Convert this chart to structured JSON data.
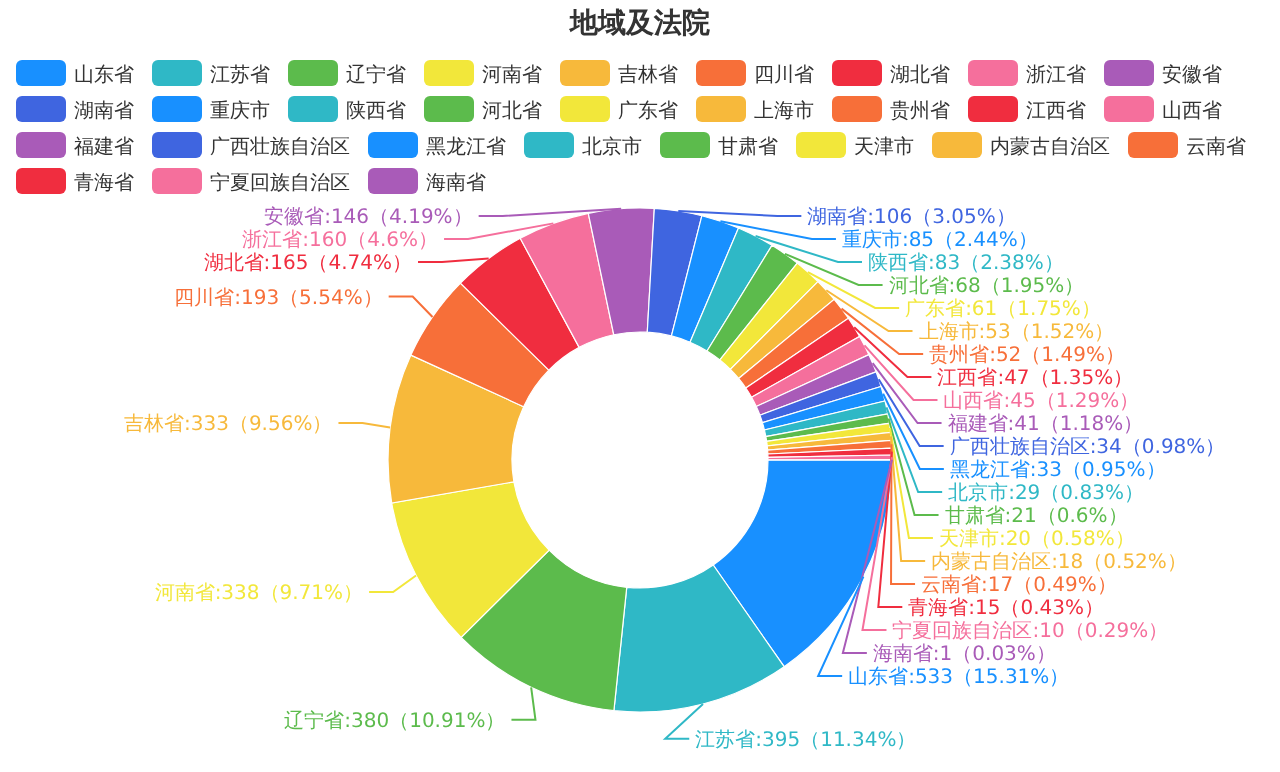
{
  "chart_data": {
    "type": "donut",
    "title": "地域及法院",
    "legend": "top",
    "categories": [
      "山东省",
      "江苏省",
      "辽宁省",
      "河南省",
      "吉林省",
      "四川省",
      "湖北省",
      "浙江省",
      "安徽省",
      "湖南省",
      "重庆市",
      "陕西省",
      "河北省",
      "广东省",
      "上海市",
      "贵州省",
      "江西省",
      "山西省",
      "福建省",
      "广西壮族自治区",
      "黑龙江省",
      "北京市",
      "甘肃省",
      "天津市",
      "内蒙古自治区",
      "云南省",
      "青海省",
      "宁夏回族自治区",
      "海南省"
    ],
    "values": [
      533,
      395,
      380,
      338,
      333,
      193,
      165,
      160,
      146,
      106,
      85,
      83,
      68,
      61,
      53,
      52,
      47,
      45,
      41,
      34,
      33,
      29,
      21,
      20,
      18,
      17,
      15,
      10,
      1
    ],
    "colors": [
      "#1890ff",
      "#2fb8c6",
      "#5cbb4c",
      "#f2e73a",
      "#f7b93b",
      "#f76f39",
      "#f02d3f",
      "#f56f9c",
      "#a95bb8",
      "#3f65e0",
      "#1890ff",
      "#2fb8c6",
      "#5cbb4c",
      "#f2e73a",
      "#f7b93b",
      "#f76f39",
      "#f02d3f",
      "#f56f9c",
      "#a95bb8",
      "#3f65e0",
      "#1890ff",
      "#2fb8c6",
      "#5cbb4c",
      "#f2e73a",
      "#f7b93b",
      "#f76f39",
      "#f02d3f",
      "#f56f9c",
      "#a95bb8"
    ],
    "value_labels": [
      "山东省:533（15.31%）",
      "江苏省:395（11.34%）",
      "辽宁省:380（10.91%）",
      "河南省:338（9.71%）",
      "吉林省:333（9.56%）",
      "四川省:193（5.54%）",
      "湖北省:165（4.74%）",
      "浙江省:160（4.6%）",
      "安徽省:146（4.19%）",
      "湖南省:106（3.05%）",
      "重庆市:85（2.44%）",
      "陕西省:83（2.38%）",
      "河北省:68（1.95%）",
      "广东省:61（1.75%）",
      "上海市:53（1.52%）",
      "贵州省:52（1.49%）",
      "江西省:47（1.35%）",
      "山西省:45（1.29%）",
      "福建省:41（1.18%）",
      "广西壮族自治区:34（0.98%）",
      "黑龙江省:33（0.95%）",
      "北京市:29（0.83%）",
      "甘肃省:21（0.6%）",
      "天津市:20（0.58%）",
      "内蒙古自治区:18（0.52%）",
      "云南省:17（0.49%）",
      "青海省:15（0.43%）",
      "宁夏回族自治区:10（0.29%）",
      "海南省:1（0.03%）"
    ]
  }
}
